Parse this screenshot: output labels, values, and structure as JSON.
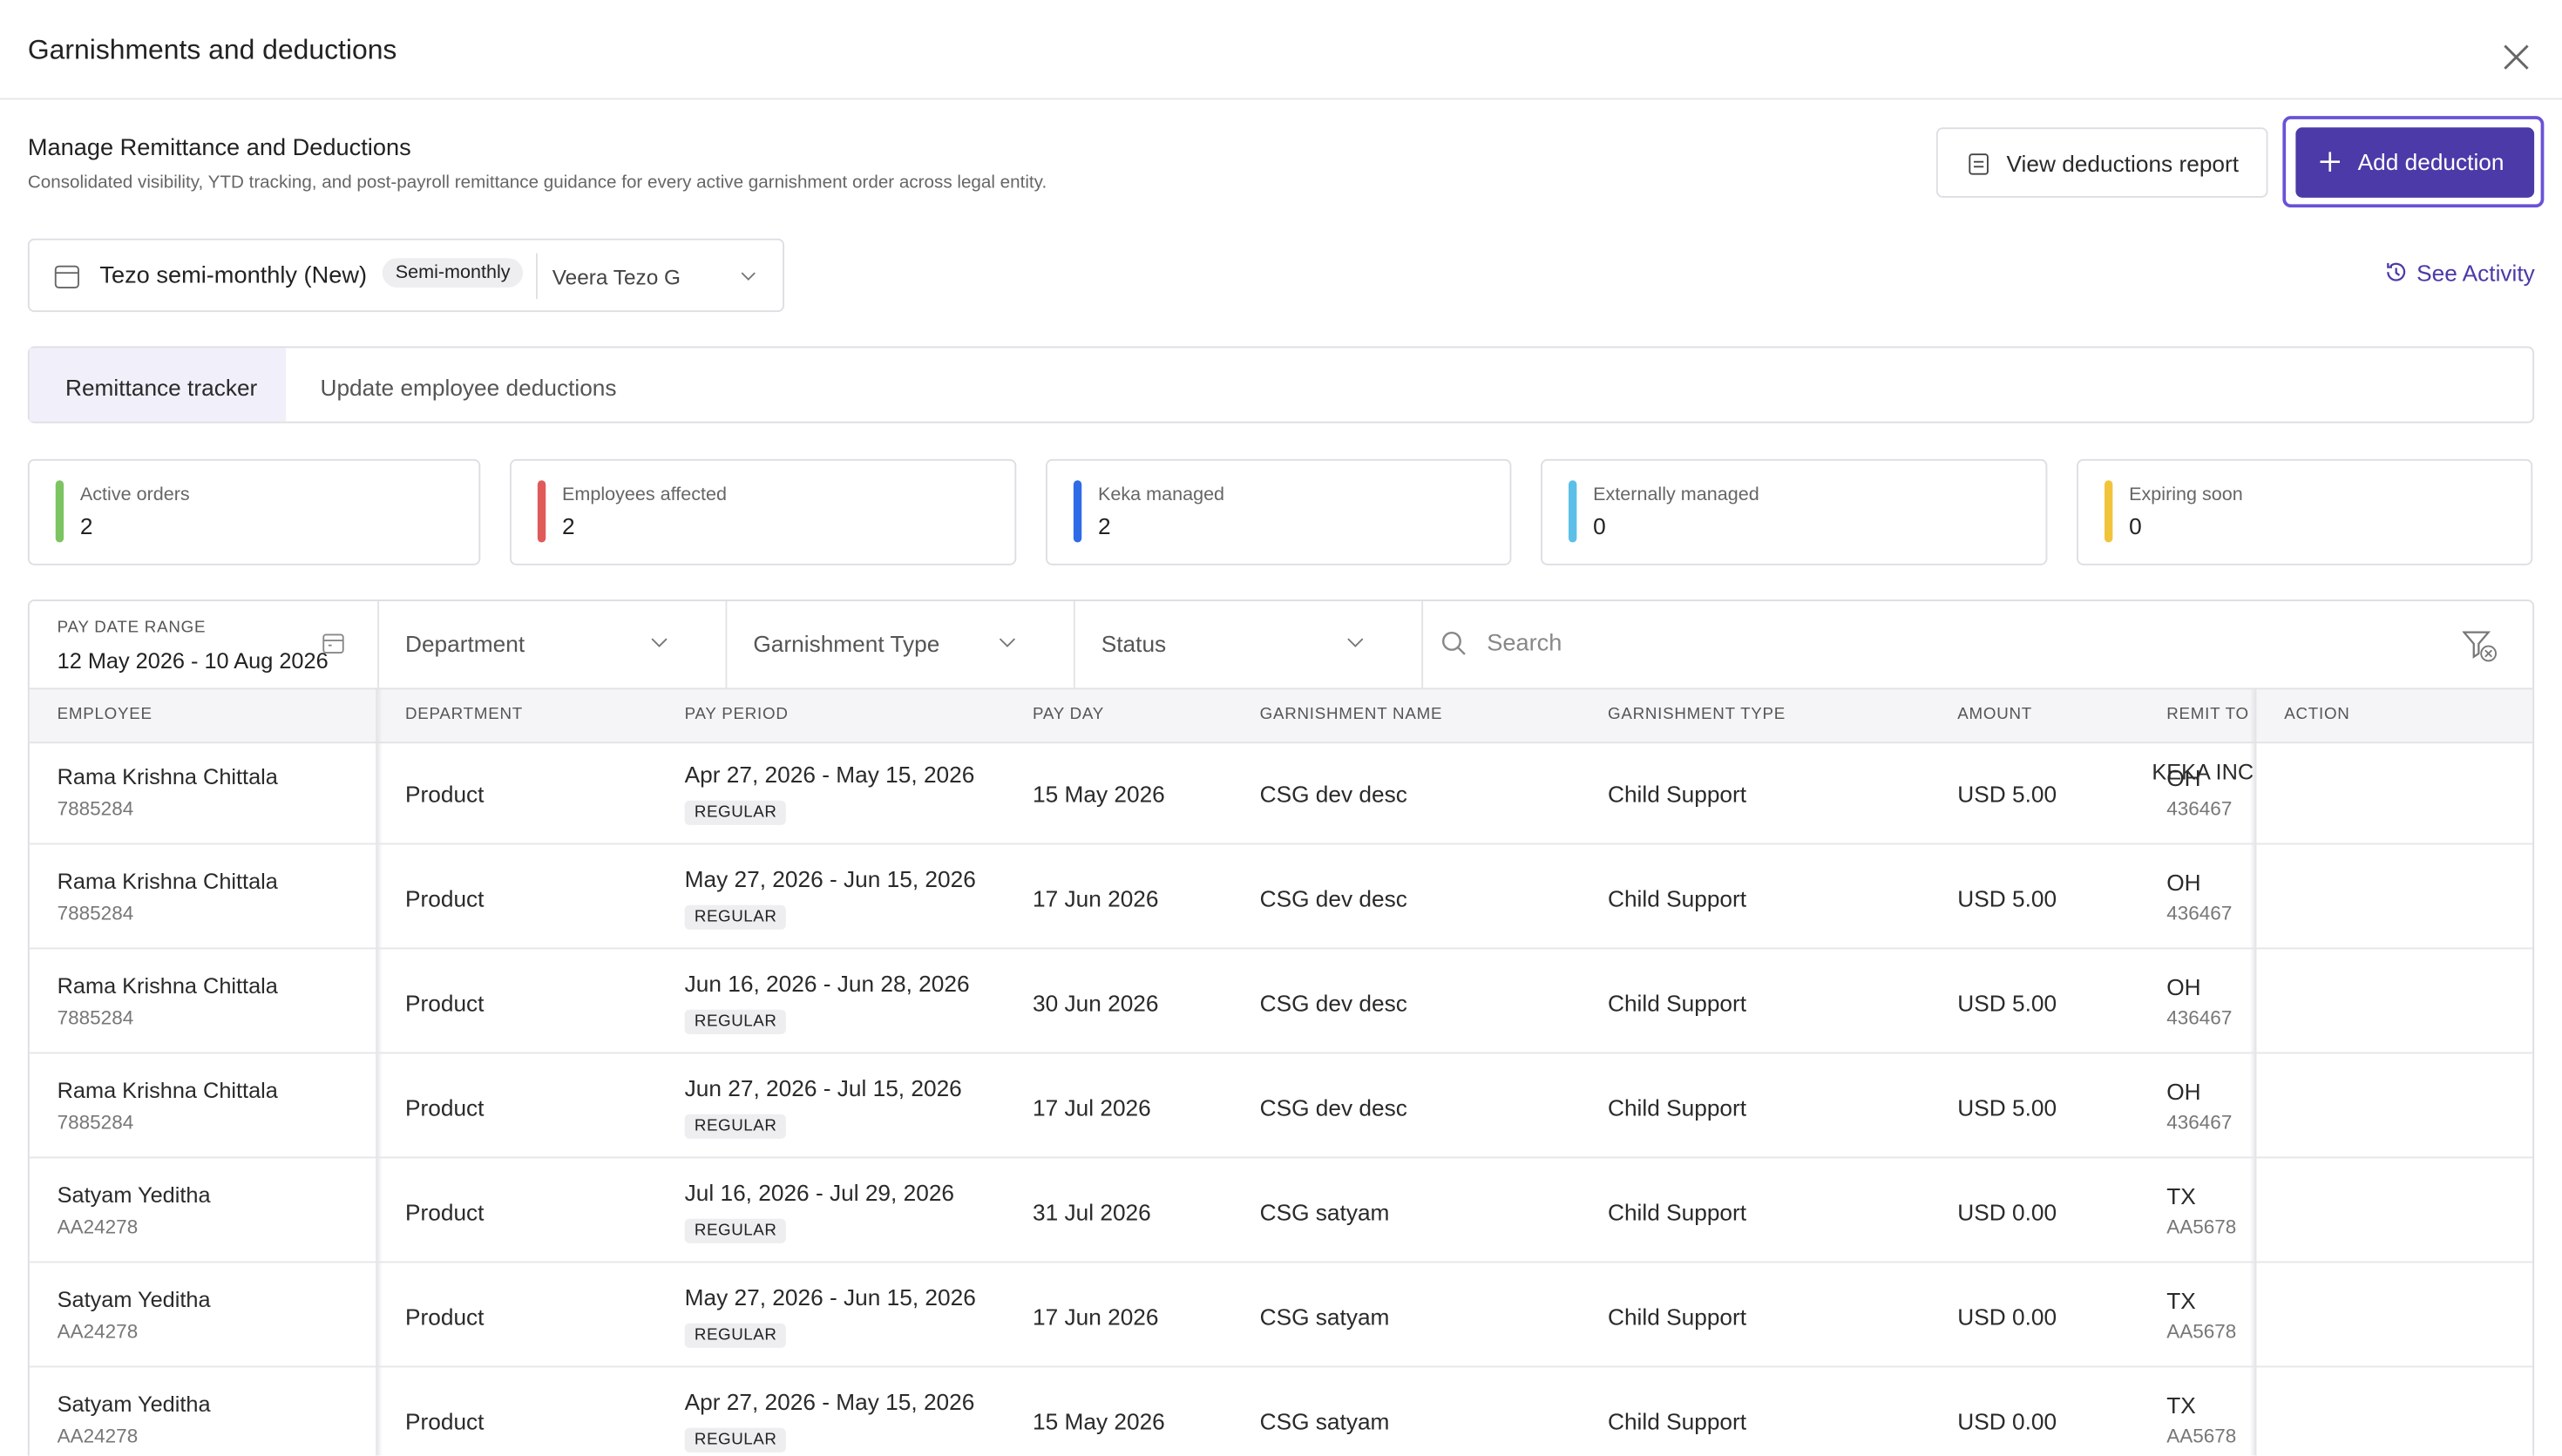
{
  "header": {
    "title": "Garnishments and deductions"
  },
  "section": {
    "title": "Manage Remittance and Deductions",
    "subtitle": "Consolidated visibility, YTD tracking, and post-payroll remittance guidance for every active garnishment order across legal entity."
  },
  "buttons": {
    "view_report": "View deductions report",
    "add": "Add deduction",
    "see_activity": "See Activity"
  },
  "selector": {
    "payroll": "Tezo semi-monthly (New)",
    "badge": "Semi-monthly",
    "entity": "Veera Tezo G"
  },
  "tabs": [
    "Remittance tracker",
    "Update employee deductions"
  ],
  "stats": [
    {
      "label": "Active orders",
      "value": 2,
      "color": "#7cc462"
    },
    {
      "label": "Employees affected",
      "value": 2,
      "color": "#e05a5a"
    },
    {
      "label": "Keka managed",
      "value": 2,
      "color": "#2f6be6"
    },
    {
      "label": "Externally managed",
      "value": 0,
      "color": "#5bbfe8"
    },
    {
      "label": "Expiring soon",
      "value": 0,
      "color": "#f2c43c"
    }
  ],
  "filters": {
    "pay_date_label": "PAY DATE RANGE",
    "pay_date_value": "12 May 2026 - 10 Aug 2026",
    "department": "Department",
    "garnishment_type": "Garnishment Type",
    "status": "Status",
    "search": "Search"
  },
  "table": {
    "columns": [
      "EMPLOYEE",
      "DEPARTMENT",
      "PAY PERIOD",
      "PAY DAY",
      "GARNISHMENT NAME",
      "GARNISHMENT TYPE",
      "AMOUNT",
      "REMIT TO",
      "ACTION"
    ],
    "rows": [
      {
        "employee": "Rama Krishna Chittala",
        "employee_id": "7885284",
        "department": "Product",
        "pay_period": "Apr 27, 2026 - May 15, 2026",
        "period_type": "REGULAR",
        "pay_day": "15 May 2026",
        "garnishment_name": "CSG dev desc",
        "garnishment_type": "Child Support",
        "amount": "USD 5.00",
        "remit_org": "KEKA INC",
        "remit_to": "OH",
        "remit_id": "436467"
      },
      {
        "employee": "Rama Krishna Chittala",
        "employee_id": "7885284",
        "department": "Product",
        "pay_period": "May 27, 2026 - Jun 15, 2026",
        "period_type": "REGULAR",
        "pay_day": "17 Jun 2026",
        "garnishment_name": "CSG dev desc",
        "garnishment_type": "Child Support",
        "amount": "USD 5.00",
        "remit_to": "OH",
        "remit_id": "436467"
      },
      {
        "employee": "Rama Krishna Chittala",
        "employee_id": "7885284",
        "department": "Product",
        "pay_period": "Jun 16, 2026 - Jun 28, 2026",
        "period_type": "REGULAR",
        "pay_day": "30 Jun 2026",
        "garnishment_name": "CSG dev desc",
        "garnishment_type": "Child Support",
        "amount": "USD 5.00",
        "remit_to": "OH",
        "remit_id": "436467"
      },
      {
        "employee": "Rama Krishna Chittala",
        "employee_id": "7885284",
        "department": "Product",
        "pay_period": "Jun 27, 2026 - Jul 15, 2026",
        "period_type": "REGULAR",
        "pay_day": "17 Jul 2026",
        "garnishment_name": "CSG dev desc",
        "garnishment_type": "Child Support",
        "amount": "USD 5.00",
        "remit_to": "OH",
        "remit_id": "436467"
      },
      {
        "employee": "Satyam Yeditha",
        "employee_id": "AA24278",
        "department": "Product",
        "pay_period": "Jul 16, 2026 - Jul 29, 2026",
        "period_type": "REGULAR",
        "pay_day": "31 Jul 2026",
        "garnishment_name": "CSG satyam",
        "garnishment_type": "Child Support",
        "amount": "USD 0.00",
        "remit_to": "TX",
        "remit_id": "AA5678"
      },
      {
        "employee": "Satyam Yeditha",
        "employee_id": "AA24278",
        "department": "Product",
        "pay_period": "May 27, 2026 - Jun 15, 2026",
        "period_type": "REGULAR",
        "pay_day": "17 Jun 2026",
        "garnishment_name": "CSG satyam",
        "garnishment_type": "Child Support",
        "amount": "USD 0.00",
        "remit_to": "TX",
        "remit_id": "AA5678"
      },
      {
        "employee": "Satyam Yeditha",
        "employee_id": "AA24278",
        "department": "Product",
        "pay_period": "Apr 27, 2026 - May 15, 2026",
        "period_type": "REGULAR",
        "pay_day": "15 May 2026",
        "garnishment_name": "CSG satyam",
        "garnishment_type": "Child Support",
        "amount": "USD 0.00",
        "remit_to": "TX",
        "remit_id": "AA5678"
      }
    ]
  }
}
